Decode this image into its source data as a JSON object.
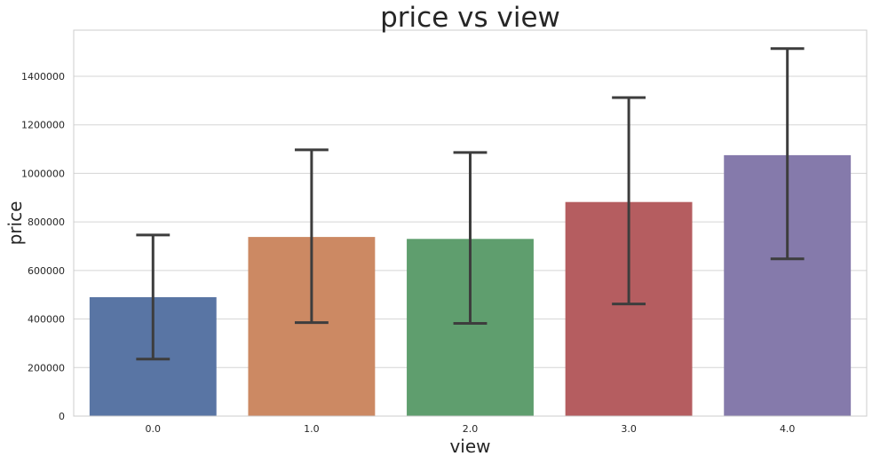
{
  "chart_data": {
    "type": "bar",
    "title": "price vs view",
    "xlabel": "view",
    "ylabel": "price",
    "categories": [
      "0.0",
      "1.0",
      "2.0",
      "3.0",
      "4.0"
    ],
    "values": [
      490000,
      738000,
      730000,
      882000,
      1075000
    ],
    "error_low": [
      235000,
      385000,
      382000,
      462000,
      648000
    ],
    "error_high": [
      746000,
      1097000,
      1086000,
      1312000,
      1514000
    ],
    "ylim": [
      0,
      1590000
    ],
    "yticks": [
      0,
      200000,
      400000,
      600000,
      800000,
      1000000,
      1200000,
      1400000
    ],
    "ytick_labels": [
      "0",
      "200000",
      "400000",
      "600000",
      "800000",
      "1000000",
      "1200000",
      "1400000"
    ],
    "colors": [
      "#5975a4",
      "#cc8963",
      "#5f9e6e",
      "#b55d60",
      "#857aab"
    ],
    "error_color": "#3d3d3d",
    "grid": "horizontal",
    "legend": "none"
  }
}
